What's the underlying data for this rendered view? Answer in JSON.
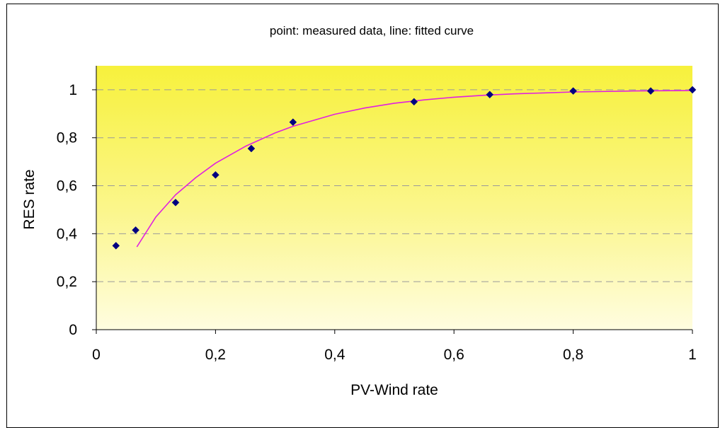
{
  "chart_data": {
    "type": "scatter",
    "title": "point: measured data, line: fitted curve",
    "xlabel": "PV-Wind rate",
    "ylabel": "RES rate",
    "xlim": [
      0,
      1
    ],
    "ylim": [
      0,
      1.1
    ],
    "xticks": [
      0,
      0.2,
      0.4,
      0.6,
      0.8,
      1
    ],
    "yticks": [
      0,
      0.2,
      0.4,
      0.6,
      0.8,
      1
    ],
    "xtick_labels": [
      "0",
      "0,2",
      "0,4",
      "0,6",
      "0,8",
      "1"
    ],
    "ytick_labels": [
      "0",
      "0,2",
      "0,4",
      "0,6",
      "0,8",
      "1"
    ],
    "grid": "horizontal dashed",
    "background": "gradient yellow",
    "series": [
      {
        "kind": "points",
        "marker": "diamond",
        "color": "#000080",
        "x": [
          0.033,
          0.066,
          0.133,
          0.2,
          0.26,
          0.33,
          0.533,
          0.66,
          0.8,
          0.93,
          1.0
        ],
        "y": [
          0.35,
          0.415,
          0.53,
          0.645,
          0.755,
          0.865,
          0.95,
          0.98,
          0.995,
          0.995,
          1.0
        ]
      },
      {
        "kind": "line",
        "color": "#e020e0",
        "x": [
          0.068,
          0.1,
          0.133,
          0.167,
          0.2,
          0.25,
          0.3,
          0.33,
          0.4,
          0.45,
          0.5,
          0.55,
          0.6,
          0.65,
          0.7,
          0.8,
          0.9,
          1.0
        ],
        "y": [
          0.345,
          0.47,
          0.562,
          0.634,
          0.694,
          0.764,
          0.82,
          0.848,
          0.898,
          0.924,
          0.944,
          0.958,
          0.969,
          0.977,
          0.983,
          0.991,
          0.995,
          0.997
        ]
      }
    ]
  }
}
